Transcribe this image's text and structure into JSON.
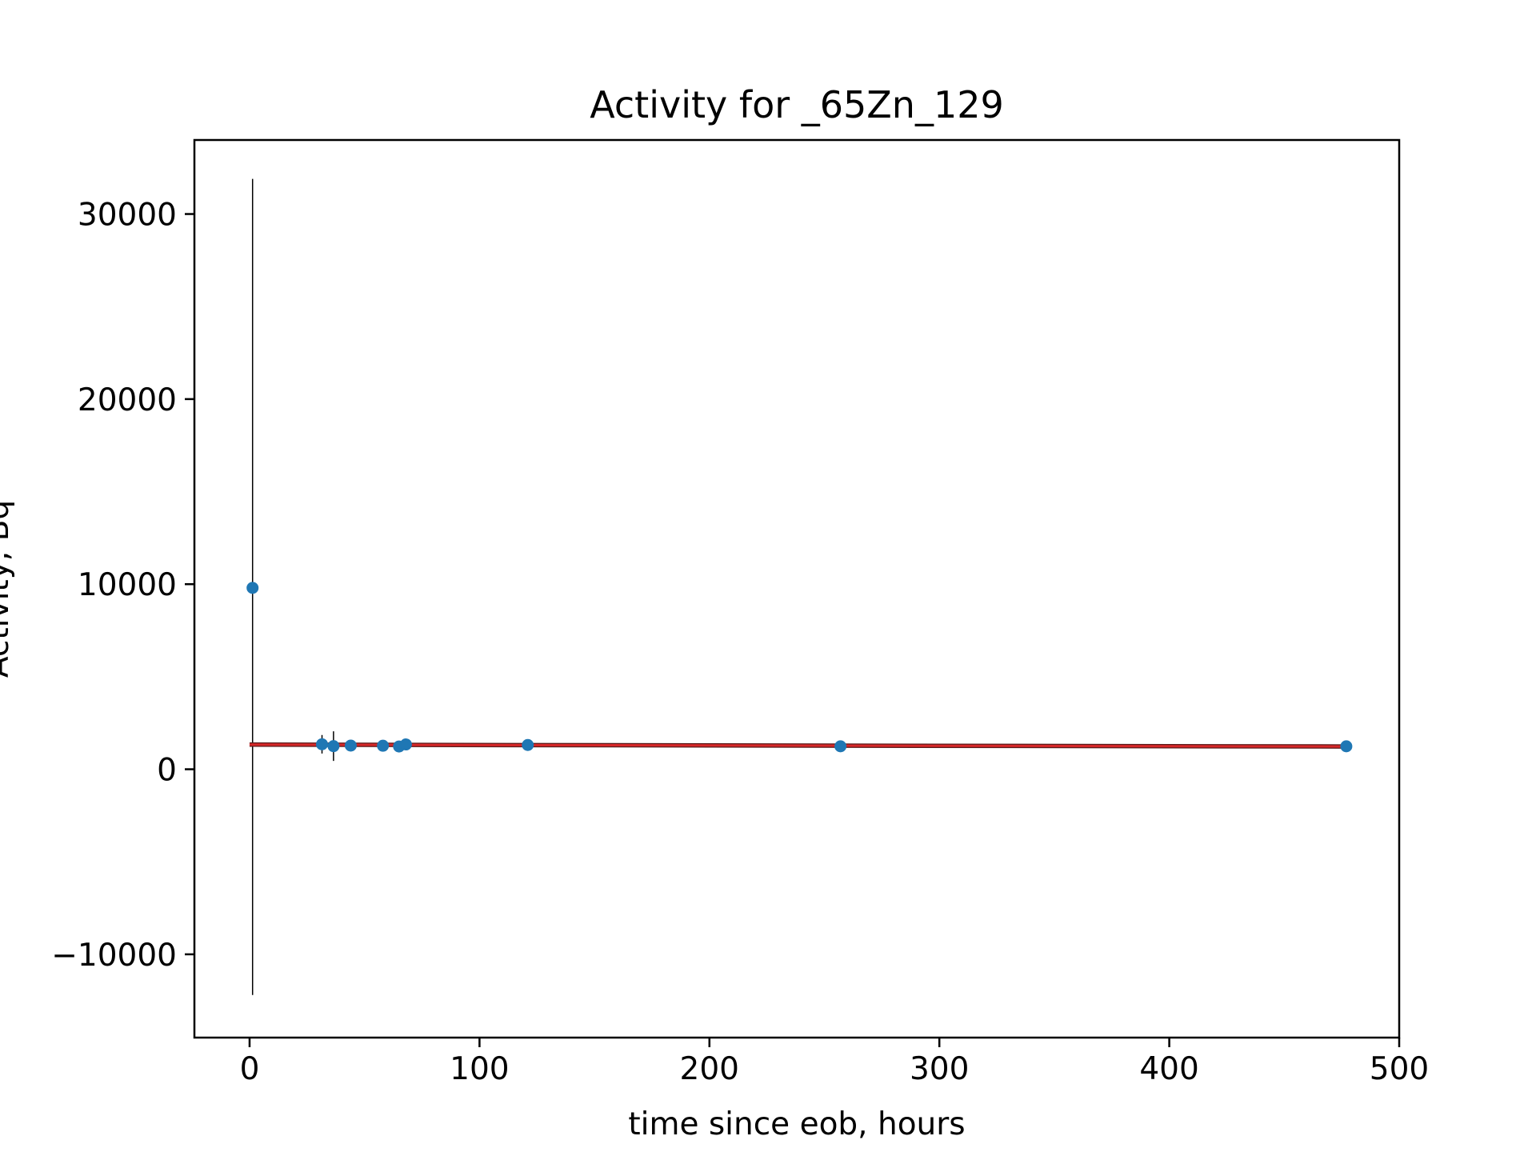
{
  "chart_data": {
    "type": "scatter",
    "title": "Activity for _65Zn_129",
    "xlabel": "time since eob, hours",
    "ylabel": "Activity, Bq",
    "xlim": [
      -24,
      500
    ],
    "ylim": [
      -14500,
      34000
    ],
    "x_ticks": [
      0,
      100,
      200,
      300,
      400,
      500
    ],
    "y_ticks": [
      -10000,
      0,
      10000,
      20000,
      30000
    ],
    "x_tick_labels": [
      "0",
      "100",
      "200",
      "300",
      "400",
      "500"
    ],
    "y_tick_labels": [
      "−10000",
      "0",
      "10000",
      "20000",
      "30000"
    ],
    "grid": false,
    "legend": "none",
    "series": [
      {
        "kind": "measured",
        "color": "#1f77b4",
        "errorbar_color": "#000000",
        "points": [
          {
            "x": 1.3,
            "y": 9800,
            "yerr_low": 22000,
            "yerr_high": 22100
          },
          {
            "x": 31.5,
            "y": 1350,
            "yerr_low": 500,
            "yerr_high": 500
          },
          {
            "x": 36.5,
            "y": 1250,
            "yerr_low": 800,
            "yerr_high": 800
          },
          {
            "x": 44,
            "y": 1280,
            "yerr_low": 0,
            "yerr_high": 0
          },
          {
            "x": 58,
            "y": 1270,
            "yerr_low": 0,
            "yerr_high": 0
          },
          {
            "x": 65,
            "y": 1230,
            "yerr_low": 0,
            "yerr_high": 0
          },
          {
            "x": 68,
            "y": 1340,
            "yerr_low": 0,
            "yerr_high": 0
          },
          {
            "x": 121,
            "y": 1310,
            "yerr_low": 0,
            "yerr_high": 0
          },
          {
            "x": 257,
            "y": 1240,
            "yerr_low": 0,
            "yerr_high": 0
          },
          {
            "x": 477,
            "y": 1240,
            "yerr_low": 0,
            "yerr_high": 0
          }
        ]
      },
      {
        "kind": "fit",
        "color": "#d62728",
        "x": [
          0,
          477
        ],
        "y": [
          1330,
          1230
        ]
      }
    ]
  }
}
